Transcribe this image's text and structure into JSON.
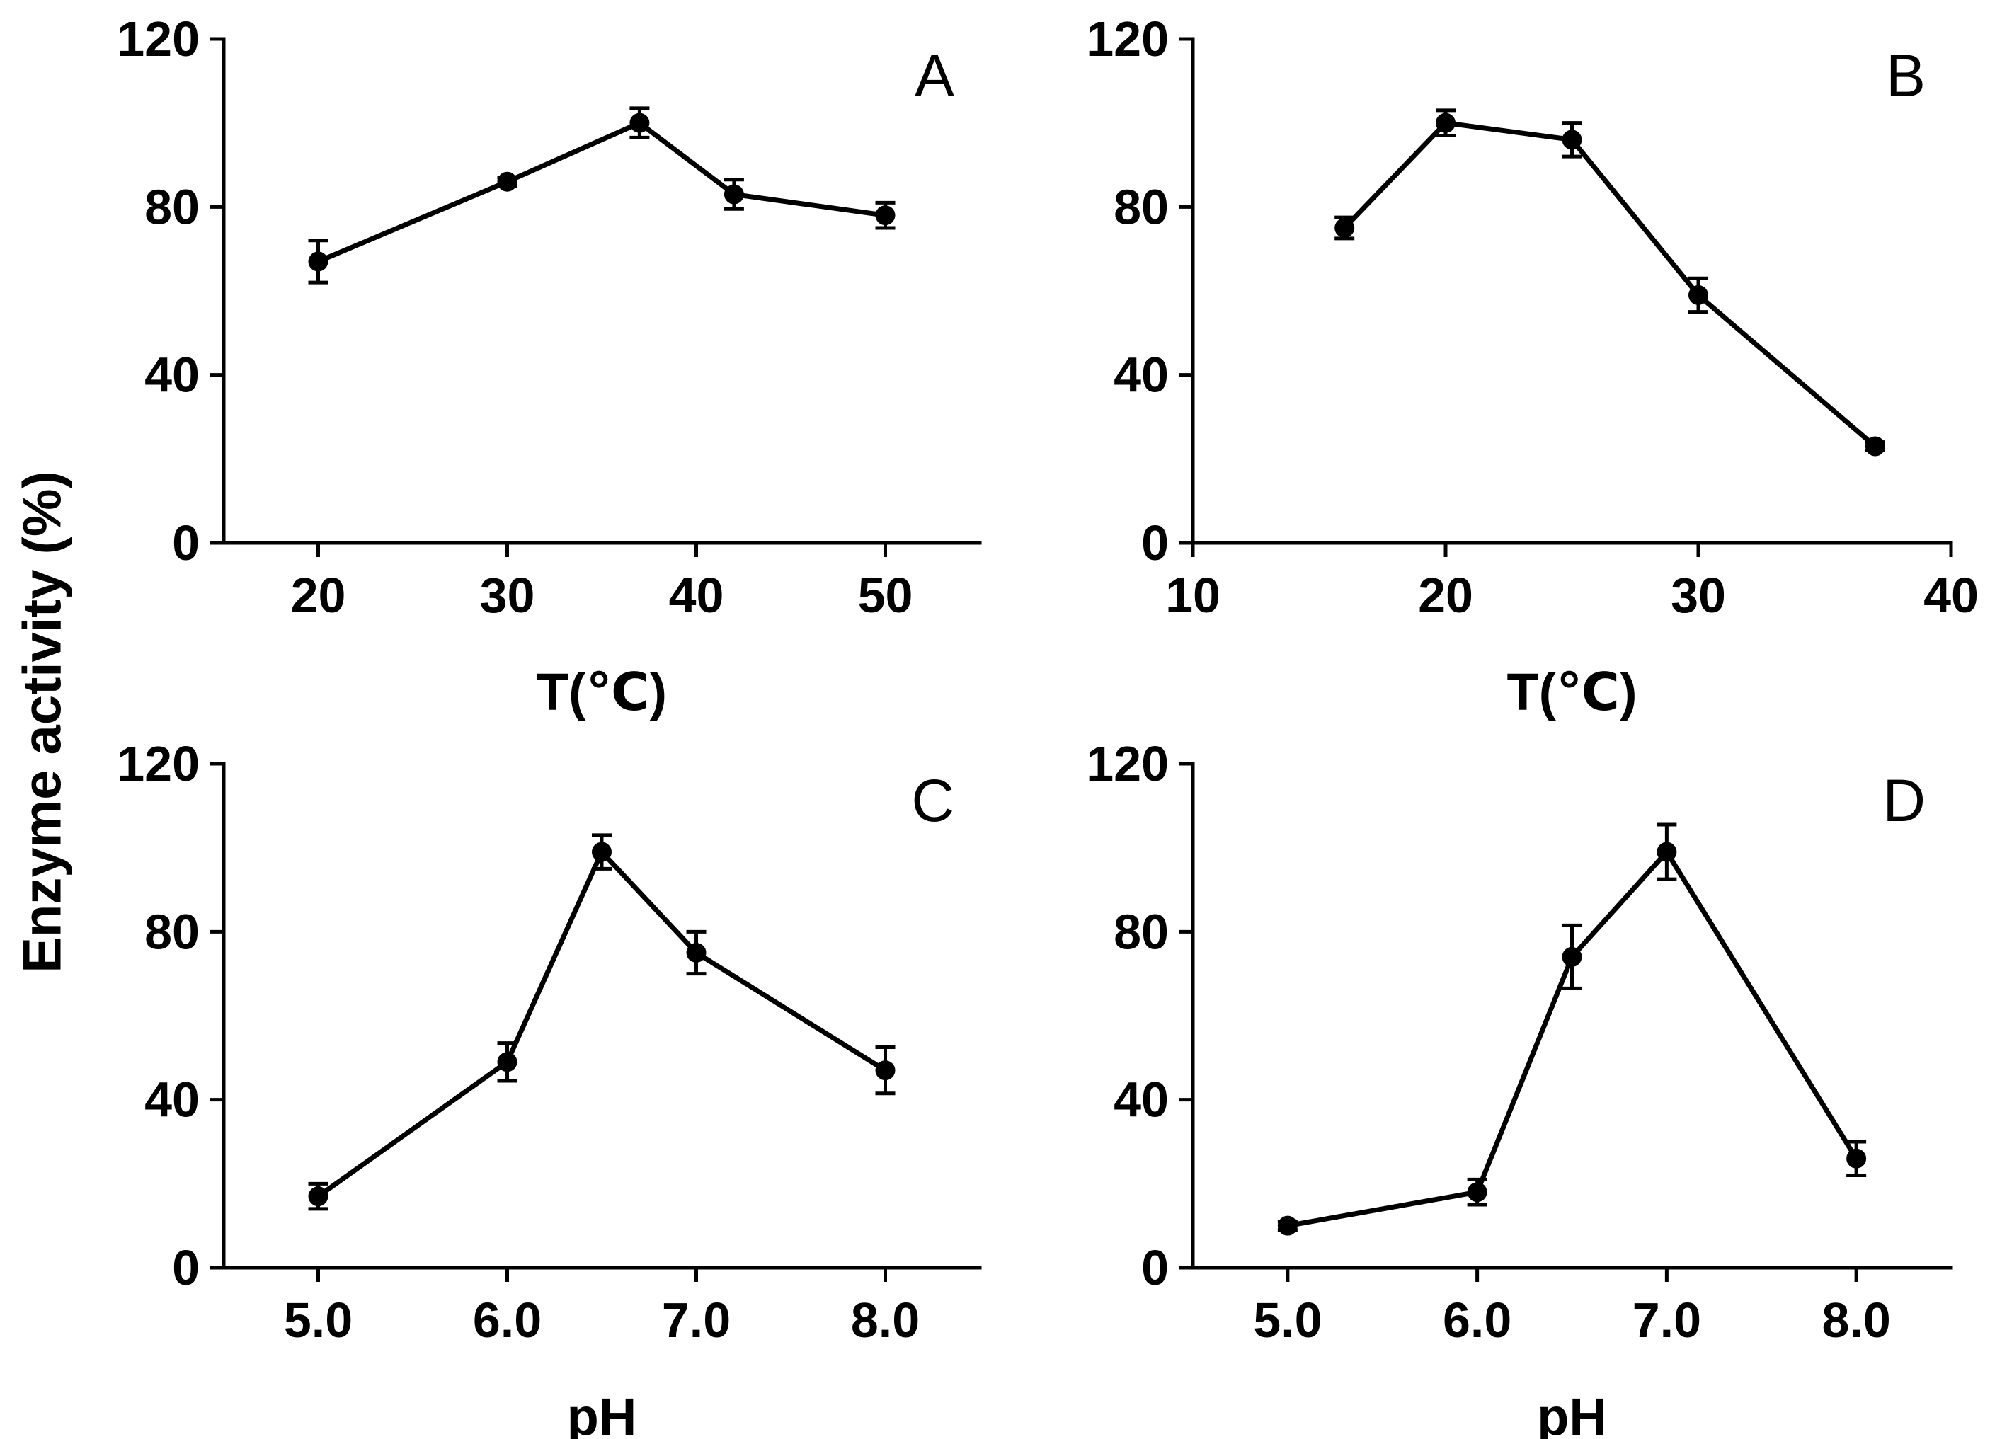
{
  "figure": {
    "ylabel": "Enzyme activity (%)"
  },
  "chart_data": [
    {
      "type": "line",
      "panel": "A",
      "xlabel": "T(℃)",
      "ylabel": "Enzyme activity (%)",
      "xlim": [
        15,
        55
      ],
      "ylim": [
        0,
        120
      ],
      "x_ticks": [
        20,
        30,
        40,
        50
      ],
      "x_tick_labels": [
        "20",
        "30",
        "40",
        "50"
      ],
      "y_ticks": [
        0,
        40,
        80,
        120
      ],
      "y_tick_labels": [
        "0",
        "40",
        "80",
        "120"
      ],
      "grid": false,
      "series": [
        {
          "name": "A",
          "x": [
            20,
            30,
            37,
            42,
            50
          ],
          "values": [
            67,
            86,
            100,
            83,
            78
          ],
          "errors": [
            5,
            1,
            3.5,
            3.5,
            3
          ]
        }
      ]
    },
    {
      "type": "line",
      "panel": "B",
      "xlabel": "T(℃)",
      "ylabel": "Enzyme activity (%)",
      "xlim": [
        10,
        40
      ],
      "ylim": [
        0,
        120
      ],
      "x_ticks": [
        10,
        20,
        30,
        40
      ],
      "x_tick_labels": [
        "10",
        "20",
        "30",
        "40"
      ],
      "y_ticks": [
        0,
        40,
        80,
        120
      ],
      "y_tick_labels": [
        "0",
        "40",
        "80",
        "120"
      ],
      "grid": false,
      "series": [
        {
          "name": "B",
          "x": [
            16,
            20,
            25,
            30,
            37
          ],
          "values": [
            75,
            100,
            96,
            59,
            23
          ],
          "errors": [
            2.5,
            3,
            4,
            4,
            1
          ]
        }
      ]
    },
    {
      "type": "line",
      "panel": "C",
      "xlabel": "pH",
      "ylabel": "Enzyme activity (%)",
      "xlim": [
        4.5,
        8.5
      ],
      "ylim": [
        0,
        120
      ],
      "x_ticks": [
        5.0,
        6.0,
        7.0,
        8.0
      ],
      "x_tick_labels": [
        "5.0",
        "6.0",
        "7.0",
        "8.0"
      ],
      "y_ticks": [
        0,
        40,
        80,
        120
      ],
      "y_tick_labels": [
        "0",
        "40",
        "80",
        "120"
      ],
      "grid": false,
      "series": [
        {
          "name": "C",
          "x": [
            5.0,
            6.0,
            6.5,
            7.0,
            8.0
          ],
          "values": [
            17,
            49,
            99,
            75,
            47
          ],
          "errors": [
            3,
            4.5,
            4,
            5,
            5.5
          ]
        }
      ]
    },
    {
      "type": "line",
      "panel": "D",
      "xlabel": "pH",
      "ylabel": "Enzyme activity (%)",
      "xlim": [
        4.5,
        8.5
      ],
      "ylim": [
        0,
        120
      ],
      "x_ticks": [
        5.0,
        6.0,
        7.0,
        8.0
      ],
      "x_tick_labels": [
        "5.0",
        "6.0",
        "7.0",
        "8.0"
      ],
      "y_ticks": [
        0,
        40,
        80,
        120
      ],
      "y_tick_labels": [
        "0",
        "40",
        "80",
        "120"
      ],
      "grid": false,
      "series": [
        {
          "name": "D",
          "x": [
            5.0,
            6.0,
            6.5,
            7.0,
            8.0
          ],
          "values": [
            10,
            18,
            74,
            99,
            26
          ],
          "errors": [
            1,
            3,
            7.5,
            6.5,
            4
          ]
        }
      ]
    }
  ]
}
